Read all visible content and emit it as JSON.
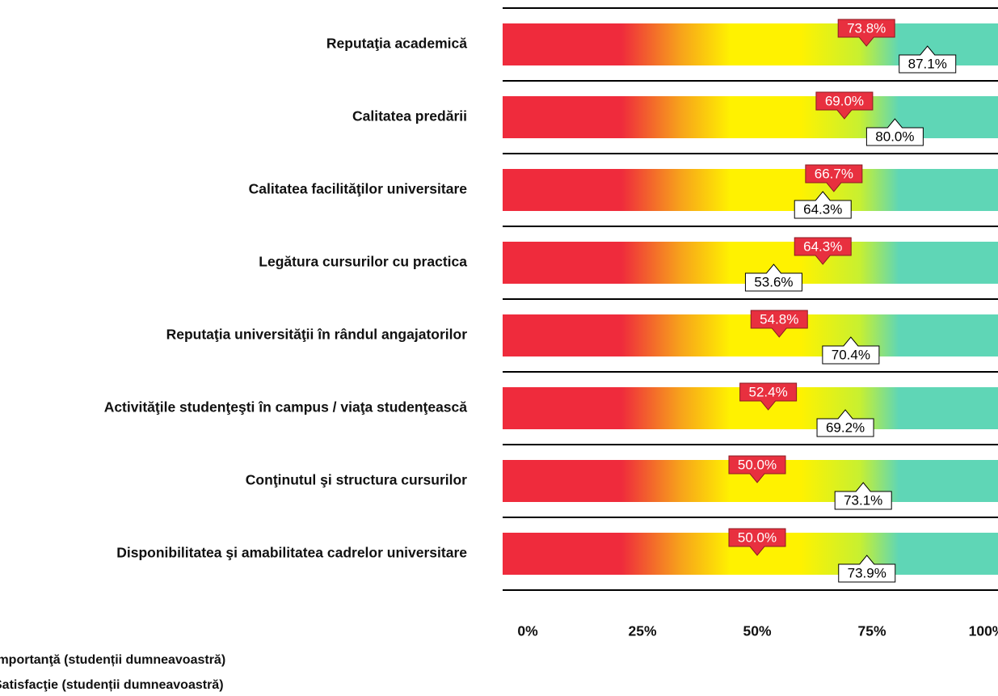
{
  "chart_data": {
    "type": "bar",
    "categories": [
      "Reputaţia academică",
      "Calitatea predării",
      "Calitatea facilităţilor universitare",
      "Legătura cursurilor cu practica",
      "Reputaţia universităţii în rândul angajatorilor",
      "Activităţile studenţeşti în campus / viaţa studenţească",
      "Conţinutul şi structura cursurilor",
      "Disponibilitatea şi amabilitatea cadrelor universitare"
    ],
    "series": [
      {
        "name": "Importanţă (studenții dumneavoastră)",
        "color": "#e8303f",
        "values": [
          73.8,
          69.0,
          66.7,
          64.3,
          54.8,
          52.4,
          50.0,
          50.0
        ],
        "value_labels": [
          "73.8%",
          "69.0%",
          "66.7%",
          "64.3%",
          "54.8%",
          "52.4%",
          "50.0%",
          "50.0%"
        ]
      },
      {
        "name": "Satisfacţie (studenții dumneavoastră)",
        "color": "#ffffff",
        "values": [
          87.1,
          80.0,
          64.3,
          53.6,
          70.4,
          69.2,
          73.1,
          73.9
        ],
        "value_labels": [
          "87.1%",
          "80.0%",
          "64.3%",
          "53.6%",
          "70.4%",
          "69.2%",
          "73.1%",
          "73.9%"
        ]
      }
    ],
    "xlim": [
      0,
      100
    ],
    "xticks": [
      {
        "value": 0,
        "label": "0%"
      },
      {
        "value": 25,
        "label": "25%"
      },
      {
        "value": 50,
        "label": "50%"
      },
      {
        "value": 75,
        "label": "75%"
      },
      {
        "value": 100,
        "label": "100%"
      }
    ]
  }
}
